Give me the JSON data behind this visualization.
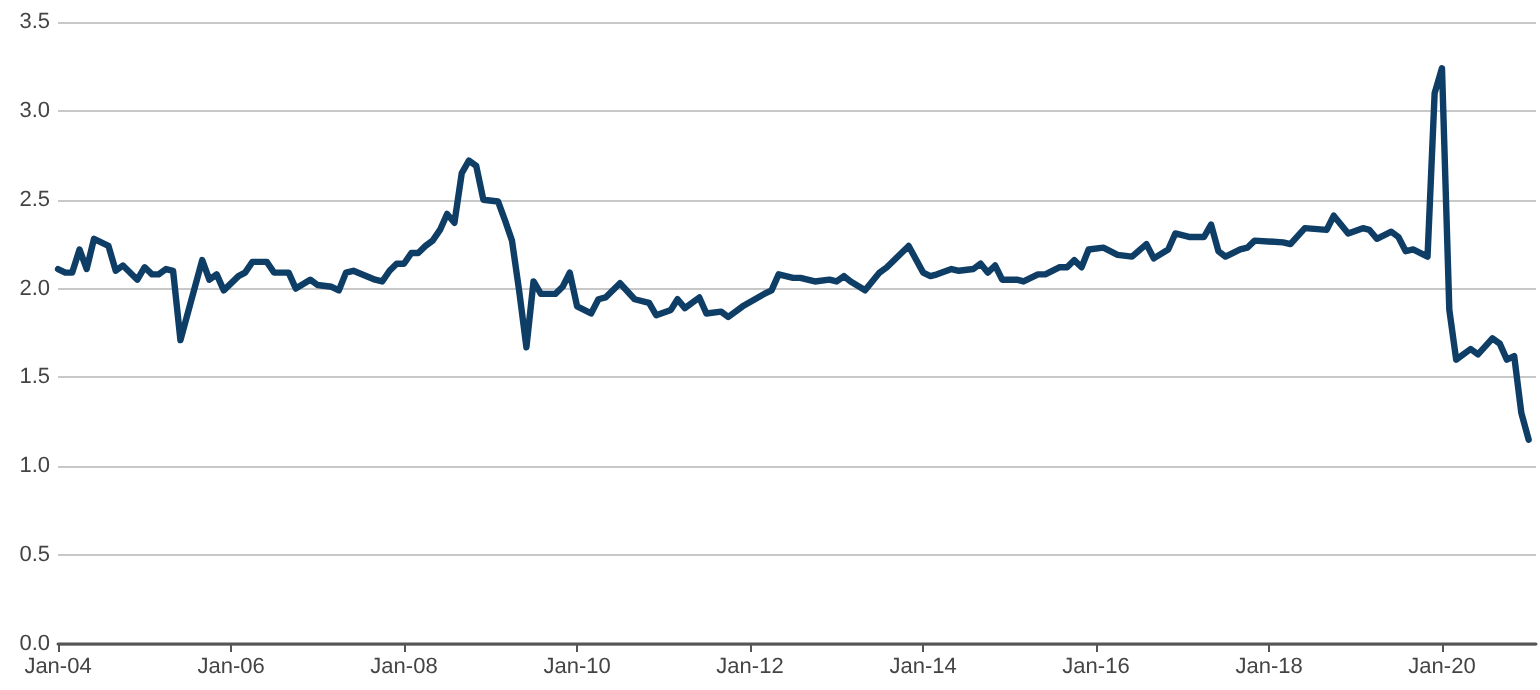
{
  "chart_data": {
    "type": "line",
    "color": "#0e3d66",
    "grid": "y",
    "marker": "none",
    "line_style": "solid",
    "xlim": [
      "2004-01",
      "2021-02"
    ],
    "xticks": [
      {
        "value": "2004-01",
        "label": "Jan-04"
      },
      {
        "value": "2006-01",
        "label": "Jan-06"
      },
      {
        "value": "2008-01",
        "label": "Jan-08"
      },
      {
        "value": "2010-01",
        "label": "Jan-10"
      },
      {
        "value": "2012-01",
        "label": "Jan-12"
      },
      {
        "value": "2014-01",
        "label": "Jan-14"
      },
      {
        "value": "2016-01",
        "label": "Jan-16"
      },
      {
        "value": "2018-01",
        "label": "Jan-18"
      },
      {
        "value": "2020-01",
        "label": "Jan-20"
      }
    ],
    "ylim": [
      0,
      3.5
    ],
    "yticks": [
      {
        "value": 0,
        "label": "0.0"
      },
      {
        "value": 0.5,
        "label": "0.5"
      },
      {
        "value": 1,
        "label": "1.0"
      },
      {
        "value": 1.5,
        "label": "1.5"
      },
      {
        "value": 2,
        "label": "2.0"
      },
      {
        "value": 2.5,
        "label": "2.5"
      },
      {
        "value": 3,
        "label": "3.0"
      },
      {
        "value": 3.5,
        "label": "3.5"
      }
    ],
    "x": [
      "2004-01",
      "2004-02",
      "2004-03",
      "2004-04",
      "2004-05",
      "2004-06",
      "2004-08",
      "2004-09",
      "2004-10",
      "2004-12",
      "2005-01",
      "2005-02",
      "2005-03",
      "2005-04",
      "2005-05",
      "2005-06",
      "2005-09",
      "2005-10",
      "2005-11",
      "2005-12",
      "2006-02",
      "2006-03",
      "2006-04",
      "2006-06",
      "2006-07",
      "2006-09",
      "2006-10",
      "2006-12",
      "2007-01",
      "2007-03",
      "2007-04",
      "2007-05",
      "2007-06",
      "2007-09",
      "2007-10",
      "2007-11",
      "2007-12",
      "2008-01",
      "2008-02",
      "2008-03",
      "2008-04",
      "2008-05",
      "2008-06",
      "2008-07",
      "2008-08",
      "2008-09",
      "2008-10",
      "2008-11",
      "2008-12",
      "2009-02",
      "2009-03",
      "2009-04",
      "2009-05",
      "2009-06",
      "2009-07",
      "2009-08",
      "2009-10",
      "2009-11",
      "2009-12",
      "2010-01",
      "2010-03",
      "2010-04",
      "2010-05",
      "2010-07",
      "2010-09",
      "2010-11",
      "2010-12",
      "2011-02",
      "2011-03",
      "2011-04",
      "2011-06",
      "2011-07",
      "2011-09",
      "2011-10",
      "2011-12",
      "2012-03",
      "2012-04",
      "2012-05",
      "2012-07",
      "2012-08",
      "2012-10",
      "2012-12",
      "2013-01",
      "2013-02",
      "2013-03",
      "2013-05",
      "2013-07",
      "2013-08",
      "2013-11",
      "2014-01",
      "2014-02",
      "2014-03",
      "2014-05",
      "2014-06",
      "2014-08",
      "2014-09",
      "2014-10",
      "2014-11",
      "2014-12",
      "2015-02",
      "2015-03",
      "2015-05",
      "2015-06",
      "2015-08",
      "2015-09",
      "2015-10",
      "2015-11",
      "2015-12",
      "2016-02",
      "2016-04",
      "2016-06",
      "2016-08",
      "2016-09",
      "2016-11",
      "2016-12",
      "2017-02",
      "2017-04",
      "2017-05",
      "2017-06",
      "2017-07",
      "2017-09",
      "2017-10",
      "2017-11",
      "2018-03",
      "2018-04",
      "2018-06",
      "2018-09",
      "2018-10",
      "2018-12",
      "2019-02",
      "2019-03",
      "2019-04",
      "2019-06",
      "2019-07",
      "2019-08",
      "2019-09",
      "2019-11",
      "2019-12",
      "2020-01",
      "2020-02",
      "2020-03",
      "2020-05",
      "2020-06",
      "2020-08",
      "2020-09",
      "2020-10",
      "2020-11",
      "2020-12",
      "2021-01"
    ],
    "values": [
      2.11,
      2.09,
      2.09,
      2.22,
      2.11,
      2.28,
      2.24,
      2.1,
      2.13,
      2.05,
      2.12,
      2.08,
      2.08,
      2.11,
      2.1,
      1.71,
      2.16,
      2.05,
      2.08,
      1.99,
      2.07,
      2.09,
      2.15,
      2.15,
      2.09,
      2.09,
      2.0,
      2.05,
      2.02,
      2.01,
      1.99,
      2.09,
      2.1,
      2.05,
      2.04,
      2.1,
      2.14,
      2.14,
      2.2,
      2.2,
      2.24,
      2.27,
      2.33,
      2.42,
      2.37,
      2.65,
      2.72,
      2.69,
      2.5,
      2.49,
      2.39,
      2.27,
      1.99,
      1.67,
      2.04,
      1.97,
      1.97,
      2.01,
      2.09,
      1.9,
      1.86,
      1.94,
      1.95,
      2.03,
      1.94,
      1.92,
      1.85,
      1.88,
      1.94,
      1.89,
      1.95,
      1.86,
      1.87,
      1.84,
      1.9,
      1.97,
      1.99,
      2.08,
      2.06,
      2.06,
      2.04,
      2.05,
      2.04,
      2.07,
      2.04,
      1.99,
      2.09,
      2.12,
      2.24,
      2.09,
      2.07,
      2.08,
      2.11,
      2.1,
      2.11,
      2.14,
      2.09,
      2.13,
      2.05,
      2.05,
      2.04,
      2.08,
      2.08,
      2.12,
      2.12,
      2.16,
      2.12,
      2.22,
      2.23,
      2.19,
      2.18,
      2.25,
      2.17,
      2.22,
      2.31,
      2.29,
      2.29,
      2.36,
      2.21,
      2.18,
      2.22,
      2.23,
      2.27,
      2.26,
      2.25,
      2.34,
      2.33,
      2.41,
      2.31,
      2.34,
      2.33,
      2.28,
      2.32,
      2.29,
      2.21,
      2.22,
      2.18,
      3.1,
      3.24,
      1.88,
      1.6,
      1.66,
      1.63,
      1.72,
      1.69,
      1.6,
      1.62,
      1.3,
      1.15
    ]
  }
}
